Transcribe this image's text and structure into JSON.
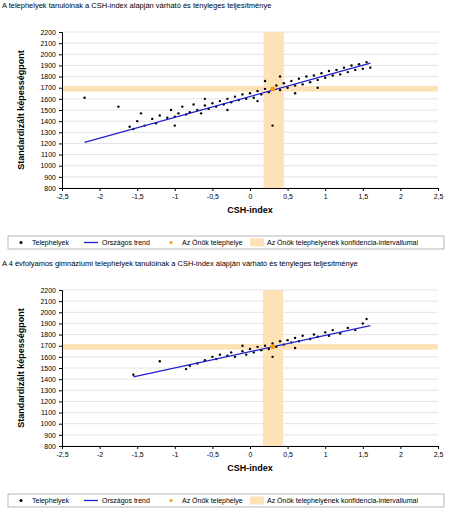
{
  "chart_data": [
    {
      "type": "scatter",
      "title": "A telephelyek tanulóinak a CSH-index alapján várható és tényleges teljesítménye",
      "xlabel": "CSH-index",
      "ylabel": "Standardizált képességpont",
      "xlim": [
        -2.5,
        2.5
      ],
      "xticks": [
        {
          "value": -2.5,
          "label": "-2,5"
        },
        -2,
        {
          "value": -1.5,
          "label": "-1,5"
        },
        -1,
        {
          "value": -0.5,
          "label": "-0,5"
        },
        0,
        {
          "value": 0.5,
          "label": "0,5"
        },
        1,
        {
          "value": 1.5,
          "label": "1,5"
        },
        2,
        {
          "value": 2.5,
          "label": "2,5"
        }
      ],
      "ylim": [
        800,
        2200
      ],
      "yticks": [
        800,
        900,
        1000,
        1100,
        1200,
        1300,
        1400,
        1500,
        1600,
        1700,
        1800,
        1900,
        2000,
        2100,
        2200
      ],
      "grid": true,
      "legend": "bottom",
      "series": [
        {
          "name": "Telephelyek",
          "type": "scatter",
          "color": "#000000",
          "marker": "circle",
          "x": [
            -2.2,
            -1.75,
            -1.6,
            -1.55,
            -1.5,
            -1.45,
            -1.4,
            -1.3,
            -1.25,
            -1.2,
            -1.1,
            -1.05,
            -1.0,
            -0.95,
            -0.9,
            -0.85,
            -0.8,
            -0.75,
            -0.7,
            -0.65,
            -0.6,
            -0.55,
            -0.5,
            -0.45,
            -0.4,
            -0.35,
            -0.3,
            -0.25,
            -0.2,
            -0.15,
            -0.1,
            -0.05,
            0.0,
            0.05,
            0.1,
            0.15,
            0.2,
            0.25,
            0.3,
            0.35,
            0.4,
            0.45,
            0.5,
            0.55,
            0.6,
            0.65,
            0.7,
            0.75,
            0.8,
            0.85,
            0.9,
            0.95,
            1.0,
            1.05,
            1.1,
            1.15,
            1.2,
            1.25,
            1.3,
            1.35,
            1.4,
            1.45,
            1.5,
            1.55,
            1.6,
            -0.6,
            -0.3,
            0.1,
            0.6,
            0.9,
            0.2,
            -1.0,
            0.4
          ],
          "values": [
            1610,
            1530,
            1350,
            1330,
            1400,
            1470,
            1360,
            1420,
            1380,
            1450,
            1430,
            1500,
            1440,
            1470,
            1530,
            1460,
            1480,
            1550,
            1500,
            1470,
            1540,
            1510,
            1560,
            1530,
            1580,
            1550,
            1600,
            1570,
            1620,
            1590,
            1640,
            1600,
            1650,
            1610,
            1670,
            1640,
            1690,
            1660,
            1360,
            1720,
            1680,
            1740,
            1700,
            1760,
            1720,
            1780,
            1730,
            1800,
            1750,
            1810,
            1770,
            1830,
            1790,
            1850,
            1810,
            1860,
            1820,
            1880,
            1840,
            1900,
            1860,
            1910,
            1870,
            1930,
            1880,
            1600,
            1500,
            1580,
            1650,
            1700,
            1760,
            1360,
            1800
          ]
        },
        {
          "name": "Országos trend",
          "type": "line",
          "color": "#1f1fcc",
          "line_style": "solid",
          "x": [
            -2.2,
            1.6
          ],
          "values": [
            1210,
            1920
          ]
        },
        {
          "name": "Az Önök telephelye",
          "type": "scatter",
          "color": "#ff9900",
          "marker": "circle",
          "x": [
            0.3
          ],
          "values": [
            1690
          ]
        }
      ],
      "confidence_interval": {
        "name": "Az Önök telephelyének konfidencia-intervallumai",
        "color": "#fde2b8",
        "x": [
          0.18,
          0.45
        ],
        "y": [
          1665,
          1715
        ]
      }
    },
    {
      "type": "scatter",
      "title": "A 4 évfolyamos gimnáziumi telephelyek tanulóinak a CSH-index alapján várható és tényleges teljesítménye",
      "xlabel": "CSH-index",
      "ylabel": "Standardizált képességpont",
      "xlim": [
        -2.5,
        2.5
      ],
      "xticks": [
        {
          "value": -2.5,
          "label": "-2,5"
        },
        -2,
        {
          "value": -1.5,
          "label": "-1,5"
        },
        -1,
        {
          "value": -0.5,
          "label": "-0,5"
        },
        0,
        {
          "value": 0.5,
          "label": "0,5"
        },
        1,
        {
          "value": 1.5,
          "label": "1,5"
        },
        2,
        {
          "value": 2.5,
          "label": "2,5"
        }
      ],
      "ylim": [
        800,
        2200
      ],
      "yticks": [
        800,
        900,
        1000,
        1100,
        1200,
        1300,
        1400,
        1500,
        1600,
        1700,
        1800,
        1900,
        2000,
        2100,
        2200
      ],
      "grid": true,
      "legend": "bottom",
      "series": [
        {
          "name": "Telephelyek",
          "type": "scatter",
          "color": "#000000",
          "marker": "circle",
          "x": [
            -1.55,
            -1.2,
            -0.85,
            -0.8,
            -0.7,
            -0.6,
            -0.5,
            -0.45,
            -0.4,
            -0.3,
            -0.25,
            -0.2,
            -0.1,
            -0.05,
            0.0,
            0.05,
            0.1,
            0.15,
            0.2,
            0.25,
            0.3,
            0.35,
            0.4,
            0.45,
            0.5,
            0.55,
            0.6,
            0.65,
            0.7,
            0.8,
            0.85,
            0.9,
            1.0,
            1.05,
            1.1,
            1.2,
            1.3,
            1.4,
            1.5,
            1.55,
            0.3,
            0.6,
            -0.1
          ],
          "values": [
            1440,
            1560,
            1490,
            1520,
            1540,
            1570,
            1600,
            1580,
            1620,
            1610,
            1640,
            1600,
            1650,
            1620,
            1670,
            1640,
            1690,
            1660,
            1700,
            1670,
            1720,
            1690,
            1740,
            1710,
            1750,
            1730,
            1770,
            1740,
            1790,
            1760,
            1800,
            1780,
            1820,
            1790,
            1840,
            1810,
            1860,
            1840,
            1900,
            1940,
            1600,
            1680,
            1700
          ]
        },
        {
          "name": "Országos trend",
          "type": "line",
          "color": "#1f1fcc",
          "line_style": "solid",
          "x": [
            -1.55,
            1.6
          ],
          "values": [
            1420,
            1880
          ]
        },
        {
          "name": "Az Önök telephelye",
          "type": "scatter",
          "color": "#ff9900",
          "marker": "circle",
          "x": [
            0.3
          ],
          "values": [
            1690
          ]
        }
      ],
      "confidence_interval": {
        "name": "Az Önök telephelyének konfidencia-intervallumai",
        "color": "#fde2b8",
        "x": [
          0.17,
          0.44
        ],
        "y": [
          1665,
          1715
        ]
      }
    }
  ]
}
